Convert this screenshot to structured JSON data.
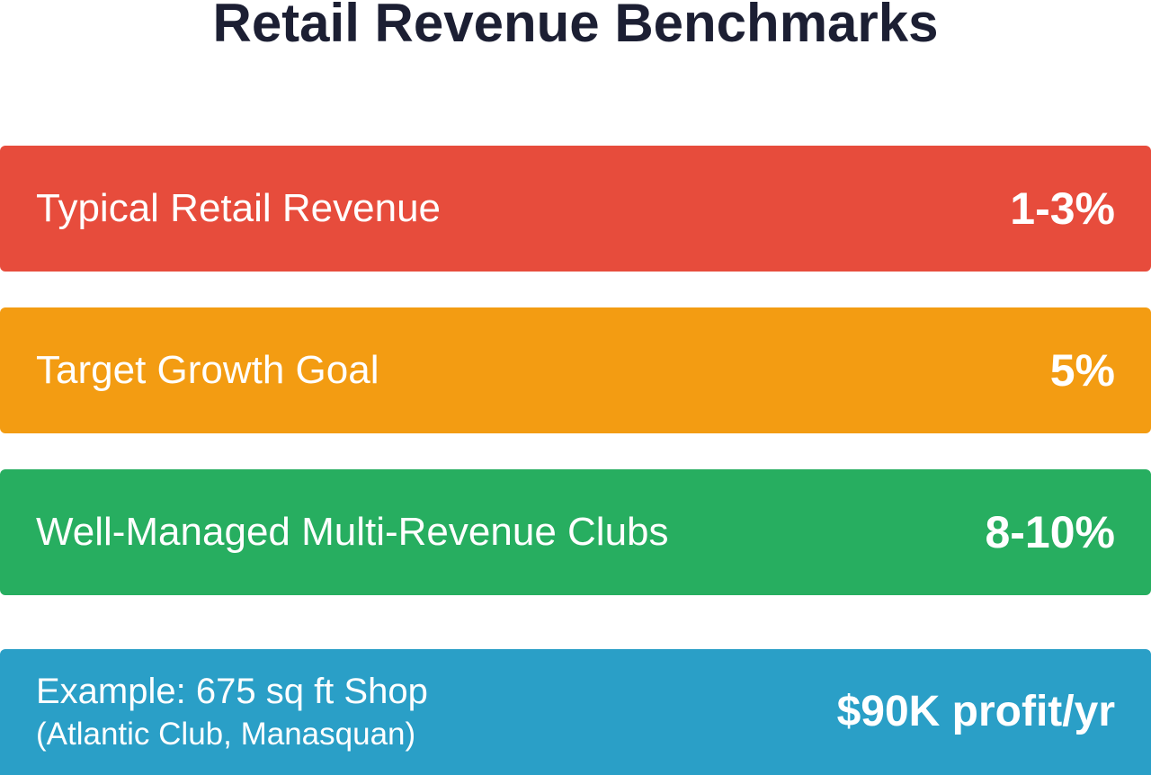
{
  "title": "Retail Revenue Benchmarks",
  "benchmarks": [
    {
      "label": "Typical Retail Revenue",
      "value": "1-3%",
      "color": "#e74c3c"
    },
    {
      "label": "Target Growth Goal",
      "value": "5%",
      "color": "#f39c12"
    },
    {
      "label": "Well-Managed Multi-Revenue Clubs",
      "value": "8-10%",
      "color": "#27ae60"
    }
  ],
  "example": {
    "line1": "Example: 675 sq ft Shop",
    "line2": "(Atlantic Club, Manasquan)",
    "value": "$90K profit/yr",
    "color": "#2a9fc7"
  }
}
